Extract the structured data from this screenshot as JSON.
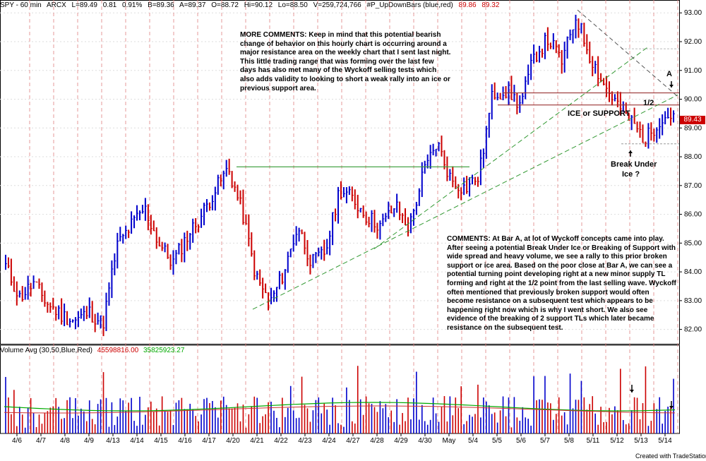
{
  "header": {
    "symbol": "SPY - 60 min",
    "exchange": "ARCX",
    "last": "L=89.49",
    "change": "0.81",
    "change_pct": "0.91%",
    "bid": "B=89.36",
    "ask": "A=89.37",
    "open": "O=88.72",
    "high": "Hi=90.12",
    "low": "Lo=88.50",
    "volume": "V=259,724,766",
    "indicator": "#P_UpDownBars (blue,red)",
    "val1": "89.86",
    "val2": "89.32"
  },
  "volume_header": {
    "label": "Volume Avg (30,50,Blue,Red)",
    "val1": "45598816.00",
    "val2": "35825923.27"
  },
  "last_price_tag": "89.43",
  "footer": "Created with TradeStation",
  "annotations": {
    "note1": "MORE COMMENTS:  Keep in mind that this potential bearish change of behavior on this hourly chart is occurring around a major resistance area on the weekly chart that I sent last night.  This little trading range that was forming over the last few days has also met many of the Wyckoff selling tests which also adds validity to looking to short a weak rally into an ice or previous support area.",
    "note2": "COMMENTS:  At Bar A, at lot of Wyckoff concepts came into play.  After seeing a potential Break Under Ice or Breaking of Support with wide spread and heavy volume, we see a rally to this prior broken support or ice area.  Based on the poor close at Bar A, we can see a potential turning point developing right at a new minor supply TL forming and right at the 1/2 point from the last selling wave.  Wyckoff often mentioned that previously broken support would often become resistance on a subsequent test which appears to be happening right now which is why I went short.  We also see evidence of the breaking of 2 support TLs which later became resistance on the subsequent test.",
    "ice": "ICE or SUPPORT",
    "half": "1/2",
    "bar_a": "A",
    "break_line1": "Break Under",
    "break_line2": "Ice ?"
  },
  "chart_data": {
    "type": "bar",
    "subtype": "ohlc-hourly",
    "x_tick_labels": [
      "4/6",
      "4/7",
      "4/8",
      "4/9",
      "4/13",
      "4/14",
      "4/15",
      "4/16",
      "4/17",
      "4/20",
      "4/21",
      "4/22",
      "4/23",
      "4/24",
      "4/27",
      "4/28",
      "4/29",
      "4/30",
      "May",
      "5/4",
      "5/5",
      "5/6",
      "5/7",
      "5/8",
      "5/11",
      "5/12",
      "5/13",
      "5/14"
    ],
    "y_ticks": [
      82,
      83,
      84,
      85,
      86,
      87,
      88,
      89,
      90,
      91,
      92,
      93
    ],
    "ylim": [
      81.5,
      93.3
    ],
    "series": [
      {
        "name": "up bars",
        "color": "#0000cc"
      },
      {
        "name": "down bars",
        "color": "#cc0000"
      }
    ],
    "price_path_approx": [
      [
        0,
        84.2
      ],
      [
        1,
        83.1
      ],
      [
        2,
        83.6
      ],
      [
        3,
        82.9
      ],
      [
        4,
        82.5
      ],
      [
        5,
        82.3
      ],
      [
        6,
        82.6
      ],
      [
        7,
        82.2
      ],
      [
        8,
        84.9
      ],
      [
        9,
        85.6
      ],
      [
        10,
        86.2
      ],
      [
        11,
        85.0
      ],
      [
        12,
        84.3
      ],
      [
        13,
        85.2
      ],
      [
        14,
        85.9
      ],
      [
        15,
        86.8
      ],
      [
        16,
        87.6
      ],
      [
        17,
        86.1
      ],
      [
        18,
        83.8
      ],
      [
        19,
        82.9
      ],
      [
        20,
        84.0
      ],
      [
        21,
        85.6
      ],
      [
        22,
        84.3
      ],
      [
        23,
        84.7
      ],
      [
        24,
        86.9
      ],
      [
        25,
        86.5
      ],
      [
        26,
        85.9
      ],
      [
        27,
        85.6
      ],
      [
        28,
        86.3
      ],
      [
        29,
        85.5
      ],
      [
        30,
        87.4
      ],
      [
        31,
        88.5
      ],
      [
        32,
        87.2
      ],
      [
        33,
        86.9
      ],
      [
        34,
        87.3
      ],
      [
        35,
        90.2
      ],
      [
        36,
        90.3
      ],
      [
        37,
        89.8
      ],
      [
        38,
        91.5
      ],
      [
        39,
        92.1
      ],
      [
        40,
        91.3
      ],
      [
        41,
        92.9
      ],
      [
        42,
        91.5
      ],
      [
        43,
        90.5
      ],
      [
        44,
        89.8
      ],
      [
        45,
        89.2
      ],
      [
        46,
        88.6
      ],
      [
        47,
        89.3
      ],
      [
        48,
        89.5
      ]
    ],
    "volume": {
      "ma_periods": [
        30,
        50
      ],
      "ma_colors": [
        "#0000cc",
        "#cc0000"
      ]
    },
    "horizontal_levels": [
      87.65,
      90.2,
      89.8,
      88.45,
      91.75
    ],
    "trendlines": 3,
    "grid": true
  }
}
